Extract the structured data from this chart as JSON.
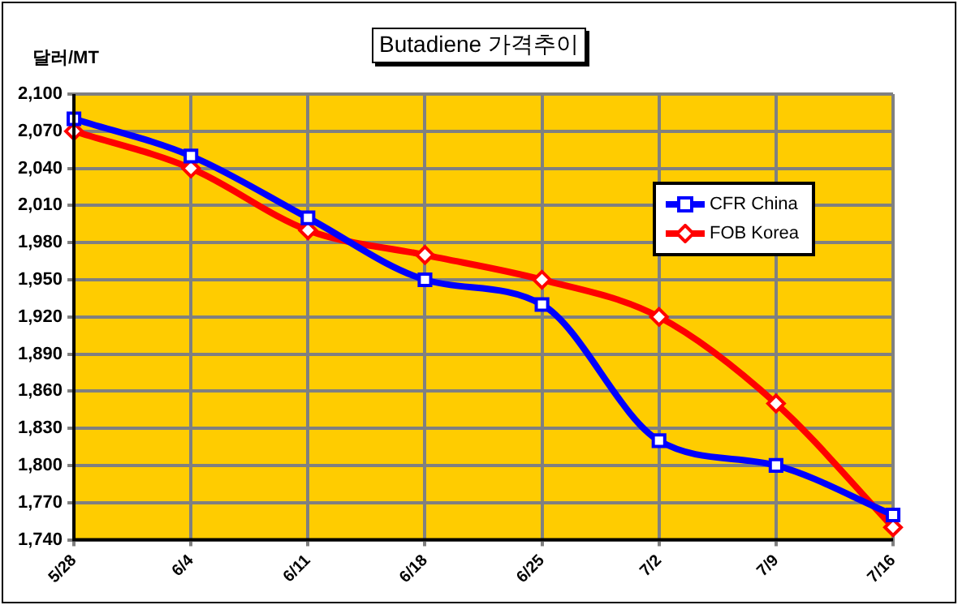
{
  "chart_data": {
    "type": "line",
    "title": "Butadiene 가격추이",
    "ylabel": "달러/MT",
    "categories": [
      "5/28",
      "6/4",
      "6/11",
      "6/18",
      "6/25",
      "7/2",
      "7/9",
      "7/16"
    ],
    "series": [
      {
        "name": "CFR China",
        "color": "#0000ff",
        "marker": "square",
        "values": [
          2080,
          2050,
          2000,
          1950,
          1930,
          1820,
          1800,
          1760
        ]
      },
      {
        "name": "FOB Korea",
        "color": "#ff0000",
        "marker": "diamond",
        "values": [
          2070,
          2040,
          1990,
          1970,
          1950,
          1920,
          1850,
          1750
        ]
      }
    ],
    "ylim": [
      1740,
      2100
    ],
    "yticks": [
      {
        "value": 1740,
        "label": "1,740"
      },
      {
        "value": 1770,
        "label": "1,770"
      },
      {
        "value": 1800,
        "label": "1,800"
      },
      {
        "value": 1830,
        "label": "1,830"
      },
      {
        "value": 1860,
        "label": "1,860"
      },
      {
        "value": 1890,
        "label": "1,890"
      },
      {
        "value": 1920,
        "label": "1,920"
      },
      {
        "value": 1950,
        "label": "1,950"
      },
      {
        "value": 1980,
        "label": "1,980"
      },
      {
        "value": 2010,
        "label": "2,010"
      },
      {
        "value": 2040,
        "label": "2,040"
      },
      {
        "value": 2070,
        "label": "2,070"
      },
      {
        "value": 2100,
        "label": "2,100"
      }
    ],
    "grid": true,
    "legend": "top right",
    "line_style": "solid"
  }
}
